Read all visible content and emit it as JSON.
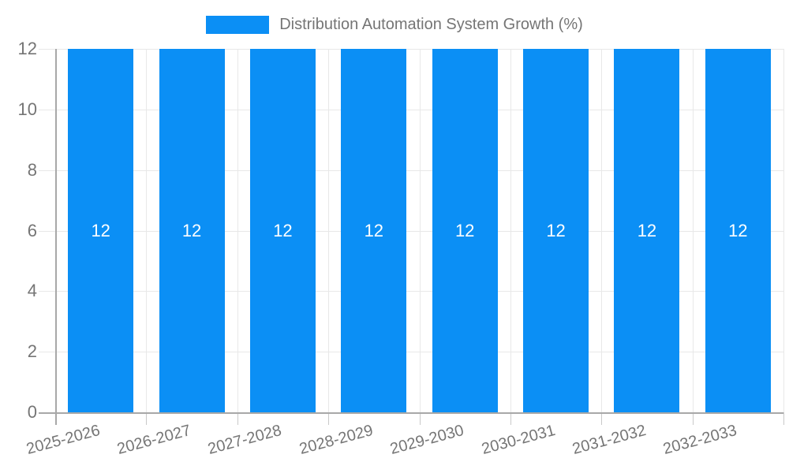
{
  "chart_data": {
    "type": "bar",
    "title": "Distribution Automation System Growth (%)",
    "categories": [
      "2025-2026",
      "2026-2027",
      "2027-2028",
      "2028-2029",
      "2029-2030",
      "2030-2031",
      "2031-2032",
      "2032-2033"
    ],
    "values": [
      12,
      12,
      12,
      12,
      12,
      12,
      12,
      12
    ],
    "bar_labels": [
      "12",
      "12",
      "12",
      "12",
      "12",
      "12",
      "12",
      "12"
    ],
    "xlabel": "",
    "ylabel": "",
    "ylim": [
      0,
      12
    ],
    "yticks": [
      0,
      2,
      4,
      6,
      8,
      10,
      12
    ],
    "grid": true,
    "legend_position": "top",
    "x_label_rotation_deg": -15,
    "colors": {
      "bar": "#0b8ff5",
      "bar_label": "#ffffff",
      "axis_line": "#a8a8a8",
      "gridline": "#e8e8e8",
      "tick_mark": "#c9c9c9",
      "tick_text": "#757575",
      "legend_text": "#757575",
      "background": "#ffffff"
    }
  }
}
